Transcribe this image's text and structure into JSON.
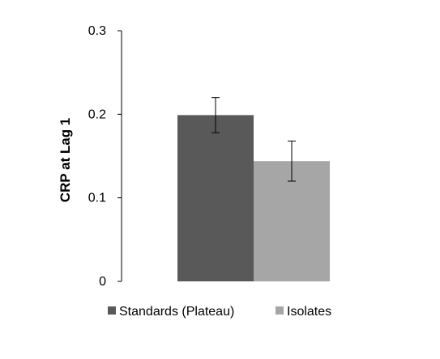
{
  "chart_data": {
    "type": "bar",
    "title": "",
    "xlabel": "",
    "ylabel": "CRP at Lag 1",
    "ylim": [
      0,
      0.3
    ],
    "yticks": [
      "0",
      "0.1",
      "0.2",
      "0.3"
    ],
    "grid": false,
    "legend_position": "bottom",
    "series": [
      {
        "name": "Standards (Plateau)",
        "value": 0.199,
        "error": 0.021,
        "color": "#595959"
      },
      {
        "name": "Isolates",
        "value": 0.144,
        "error": 0.024,
        "color": "#a6a6a6"
      }
    ]
  }
}
